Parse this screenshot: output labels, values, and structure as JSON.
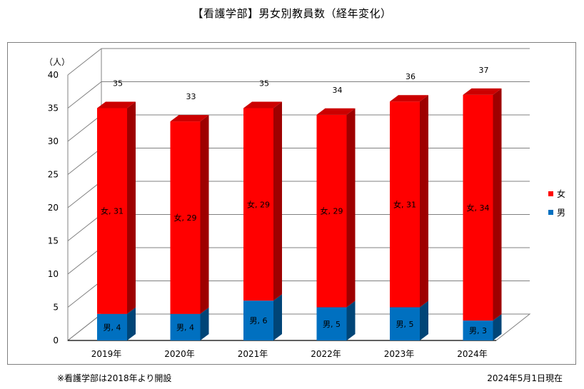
{
  "page_title": "【看護学部】男女別教員数（経年変化）",
  "footnote": "※看護学部は2018年より開設",
  "as_of": "2024年5月1日現在",
  "colors": {
    "female": "#ff0000",
    "male": "#0070c0",
    "grid": "#808080"
  },
  "chart_data": {
    "type": "bar",
    "stacked": true,
    "three_d": true,
    "title": "【看護学部】男女別教員数（経年変化）",
    "ylabel": "（人）",
    "ylim": [
      0,
      40
    ],
    "yticks": [
      0,
      5,
      10,
      15,
      20,
      25,
      30,
      35,
      40
    ],
    "grid": true,
    "legend_position": "right",
    "categories": [
      "2019年",
      "2020年",
      "2021年",
      "2022年",
      "2023年",
      "2024年"
    ],
    "series": [
      {
        "name": "男",
        "values": [
          4,
          4,
          6,
          5,
          5,
          3
        ],
        "labels": [
          "男, 4",
          "男, 4",
          "男, 6",
          "男, 5",
          "男, 5",
          "男, 3"
        ]
      },
      {
        "name": "女",
        "values": [
          31,
          29,
          29,
          29,
          31,
          34
        ],
        "labels": [
          "女, 31",
          "女, 29",
          "女, 29",
          "女, 29",
          "女, 31",
          "女, 34"
        ]
      }
    ],
    "totals": [
      35,
      33,
      35,
      34,
      36,
      37
    ],
    "legend": [
      "女",
      "男"
    ]
  }
}
